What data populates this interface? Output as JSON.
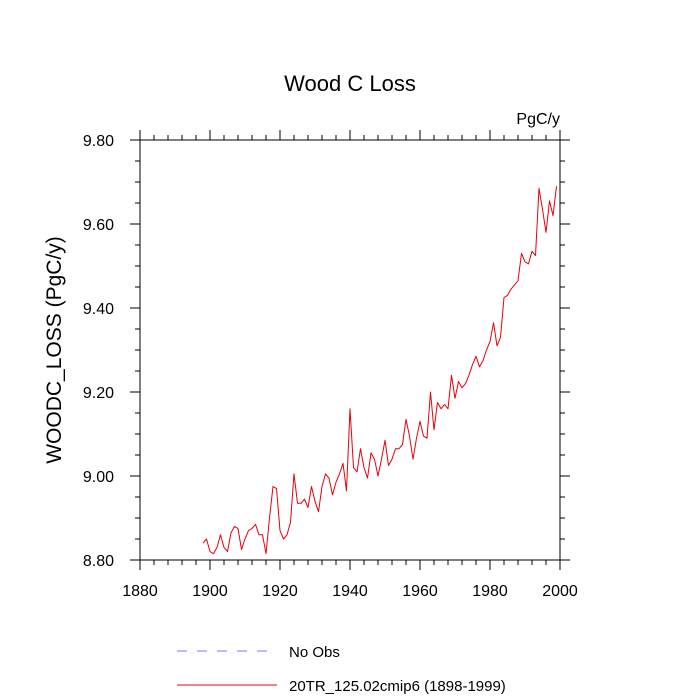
{
  "chart_data": {
    "type": "line",
    "title": "Wood C Loss",
    "units": "PgC/y",
    "ylabel": "WOODC_LOSS  (PgC/y)",
    "xlabel": "",
    "xlim": [
      1880,
      2000
    ],
    "ylim": [
      8.8,
      9.8
    ],
    "xticks": [
      1880,
      1900,
      1920,
      1940,
      1960,
      1980,
      2000
    ],
    "yticks": [
      8.8,
      9.0,
      9.2,
      9.4,
      9.6,
      9.8
    ],
    "ytick_labels": [
      "8.80",
      "9.00",
      "9.20",
      "9.40",
      "9.60",
      "9.80"
    ],
    "colors": {
      "series": "#e8000b",
      "obs": "#7777ff"
    },
    "legend": [
      {
        "label": "No Obs",
        "style": "dashed"
      },
      {
        "label": "20TR_125.02cmip6 (1898-1999)",
        "style": "solid"
      }
    ],
    "series": [
      {
        "name": "20TR_125.02cmip6 (1898-1999)",
        "x": [
          1898,
          1899,
          1900,
          1901,
          1902,
          1903,
          1904,
          1905,
          1906,
          1907,
          1908,
          1909,
          1910,
          1911,
          1912,
          1913,
          1914,
          1915,
          1916,
          1917,
          1918,
          1919,
          1920,
          1921,
          1922,
          1923,
          1924,
          1925,
          1926,
          1927,
          1928,
          1929,
          1930,
          1931,
          1932,
          1933,
          1934,
          1935,
          1936,
          1937,
          1938,
          1939,
          1940,
          1941,
          1942,
          1943,
          1944,
          1945,
          1946,
          1947,
          1948,
          1949,
          1950,
          1951,
          1952,
          1953,
          1954,
          1955,
          1956,
          1957,
          1958,
          1959,
          1960,
          1961,
          1962,
          1963,
          1964,
          1965,
          1966,
          1967,
          1968,
          1969,
          1970,
          1971,
          1972,
          1973,
          1974,
          1975,
          1976,
          1977,
          1978,
          1979,
          1980,
          1981,
          1982,
          1983,
          1984,
          1985,
          1986,
          1987,
          1988,
          1989,
          1990,
          1991,
          1992,
          1993,
          1994,
          1995,
          1996,
          1997,
          1998,
          1999
        ],
        "y": [
          8.84,
          8.85,
          8.82,
          8.815,
          8.83,
          8.86,
          8.83,
          8.82,
          8.865,
          8.88,
          8.875,
          8.825,
          8.85,
          8.87,
          8.875,
          8.885,
          8.86,
          8.86,
          8.815,
          8.9,
          8.975,
          8.97,
          8.87,
          8.85,
          8.86,
          8.89,
          9.005,
          8.935,
          8.935,
          8.945,
          8.925,
          8.975,
          8.94,
          8.915,
          8.975,
          9.005,
          8.995,
          8.955,
          8.985,
          9.005,
          9.03,
          8.965,
          9.16,
          9.02,
          9.01,
          9.065,
          9.02,
          8.995,
          9.055,
          9.04,
          9.0,
          9.04,
          9.085,
          9.025,
          9.04,
          9.065,
          9.065,
          9.075,
          9.135,
          9.095,
          9.04,
          9.09,
          9.13,
          9.095,
          9.09,
          9.2,
          9.11,
          9.175,
          9.16,
          9.17,
          9.16,
          9.24,
          9.185,
          9.225,
          9.21,
          9.22,
          9.24,
          9.265,
          9.285,
          9.26,
          9.275,
          9.3,
          9.32,
          9.365,
          9.31,
          9.33,
          9.425,
          9.43,
          9.445,
          9.455,
          9.465,
          9.53,
          9.51,
          9.505,
          9.535,
          9.525,
          9.685,
          9.635,
          9.58,
          9.655,
          9.62,
          9.69
        ]
      }
    ]
  }
}
